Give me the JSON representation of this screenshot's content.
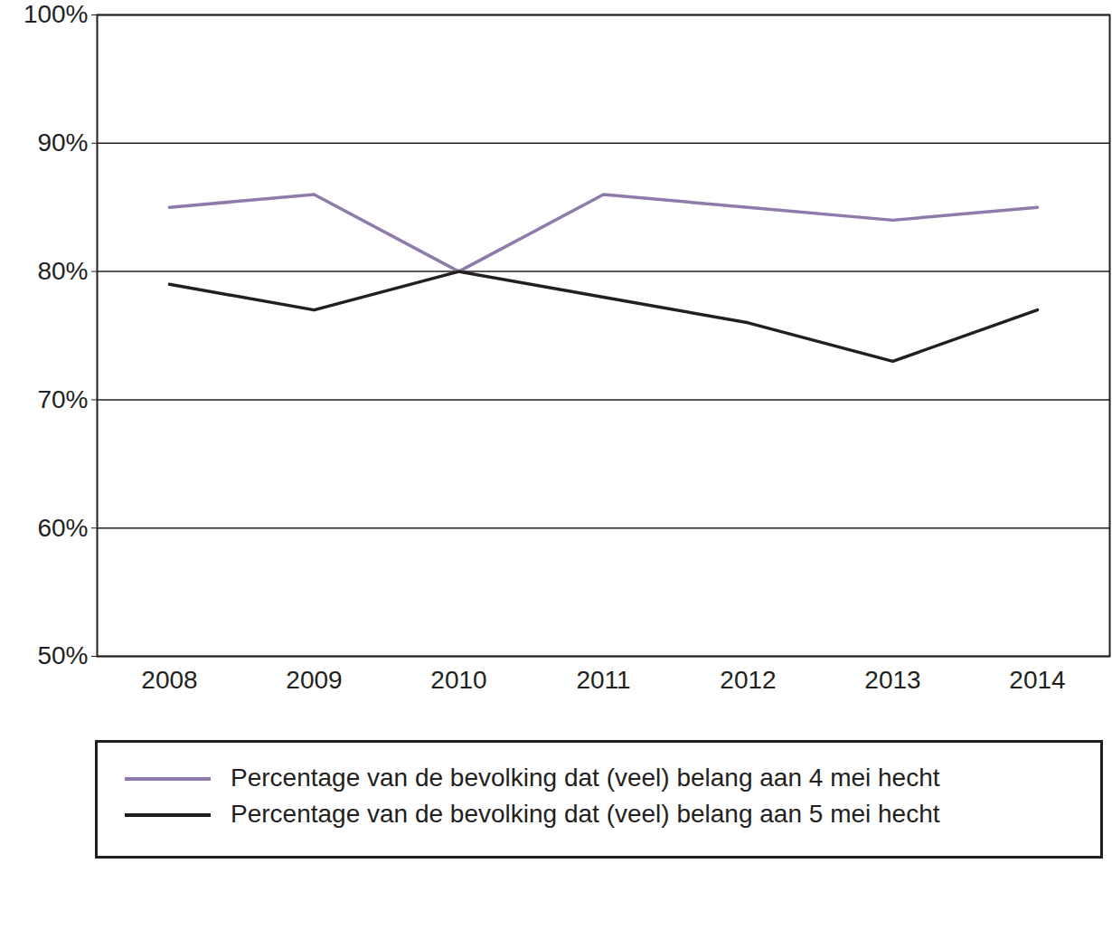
{
  "chart_data": {
    "type": "line",
    "categories": [
      "2008",
      "2009",
      "2010",
      "2011",
      "2012",
      "2013",
      "2014"
    ],
    "series": [
      {
        "name": "Percentage van de bevolking dat (veel) belang aan 4 mei hecht",
        "color": "#8e7bab",
        "values": [
          85,
          86,
          80,
          86,
          85,
          84,
          85
        ]
      },
      {
        "name": "Percentage van de bevolking dat (veel) belang aan 5 mei hecht",
        "color": "#231f20",
        "values": [
          79,
          77,
          80,
          78,
          76,
          73,
          77
        ]
      }
    ],
    "ylim": [
      50,
      100
    ],
    "yticks": [
      {
        "value": 50,
        "label": "50%"
      },
      {
        "value": 60,
        "label": "60%"
      },
      {
        "value": 70,
        "label": "70%"
      },
      {
        "value": 80,
        "label": "80%"
      },
      {
        "value": 90,
        "label": "90%"
      },
      {
        "value": 100,
        "label": "100%"
      }
    ],
    "grid": true,
    "legend": "bottom"
  }
}
